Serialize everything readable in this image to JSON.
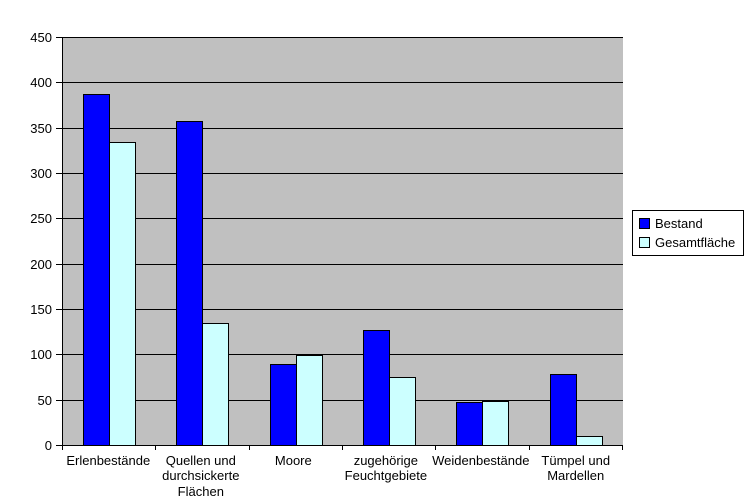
{
  "chart_data": {
    "type": "bar",
    "title": "",
    "xlabel": "",
    "ylabel": "",
    "categories": [
      "Erlenbestände",
      "Quellen und\ndurchsickerte\nFlächen",
      "Moore",
      "zugehörige\nFeuchtgebiete",
      "Weidenbestände",
      "Tümpel und\nMardellen"
    ],
    "series": [
      {
        "name": "Bestand",
        "color": "#0000FF",
        "values": [
          387,
          357,
          89,
          127,
          47,
          78
        ]
      },
      {
        "name": "Gesamtfläche",
        "color": "#CCFFFF",
        "values": [
          334,
          135,
          99,
          75,
          48,
          10
        ]
      }
    ],
    "ylim": [
      0,
      450
    ],
    "ytick_step": 50,
    "ytick_labels": [
      "0",
      "50",
      "100",
      "150",
      "200",
      "250",
      "300",
      "350",
      "400",
      "450"
    ],
    "grid": true,
    "legend_position": "right",
    "colors": {
      "plot_background": "#C0C0C0",
      "chart_background": "#FFFFFF",
      "gridline": "#000000",
      "bar_border": "#000000",
      "text": "#000000"
    }
  }
}
